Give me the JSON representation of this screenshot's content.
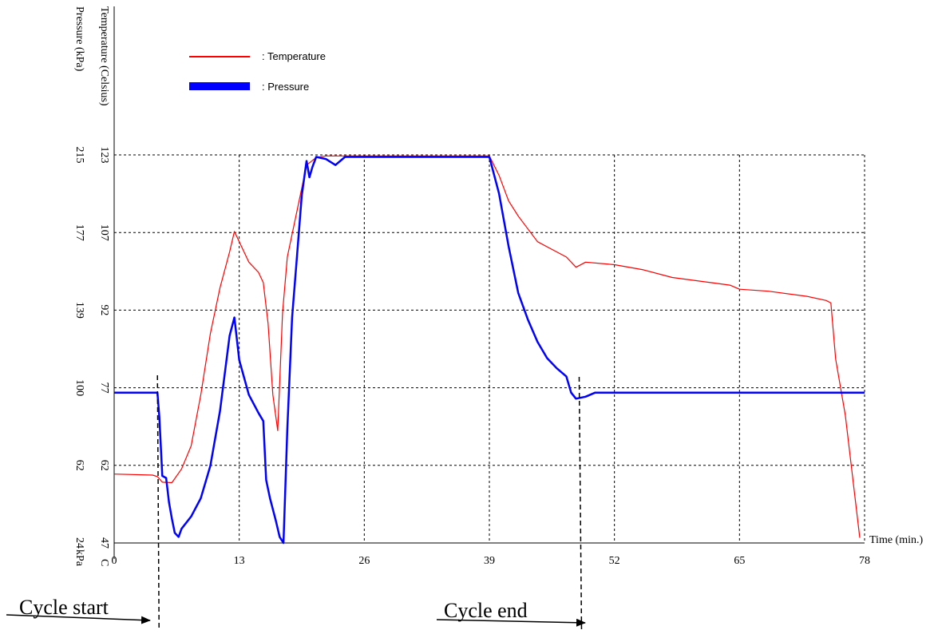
{
  "chart_data": {
    "type": "line",
    "xlabel": "Time (min.)",
    "x_ticks": [
      "0",
      "13",
      "26",
      "39",
      "52",
      "65",
      "78"
    ],
    "xlim": [
      0,
      78
    ],
    "y_left_temperature_label": "Temperature (Celsius)",
    "y_left_pressure_label": "Pressure (kPa)",
    "temperature_ticks": [
      "47",
      "62",
      "77",
      "92",
      "107",
      "123"
    ],
    "pressure_ticks": [
      "24",
      "62",
      "100",
      "139",
      "177",
      "215"
    ],
    "temperature_unit_label": "C",
    "pressure_unit_label": "kPa",
    "temperature_range": [
      47,
      123
    ],
    "pressure_range": [
      24,
      215
    ],
    "grid": true,
    "legend_position": "top-left",
    "series": [
      {
        "name": "Temperature",
        "legend_label": ":  Temperature",
        "color": "#ff0000",
        "axis": "temperature",
        "x": [
          0,
          4,
          4.5,
          5,
          6,
          7,
          8,
          9,
          10,
          11,
          12,
          12.5,
          13,
          14,
          15,
          15.5,
          16,
          16.5,
          17,
          17.5,
          18,
          19,
          20,
          21,
          22,
          24,
          28,
          32,
          36,
          39,
          40,
          41,
          42,
          44,
          45,
          47,
          48,
          49,
          52,
          55,
          58,
          62,
          64,
          65,
          68,
          72,
          74,
          74.5,
          75,
          76,
          77.5
        ],
        "values": [
          60.5,
          60.3,
          60.0,
          58.9,
          58.8,
          61.5,
          66,
          76,
          88,
          97,
          104,
          108,
          106,
          102,
          100,
          98,
          90,
          76,
          69,
          92,
          103,
          112,
          121,
          122.5,
          122.8,
          122.8,
          122.8,
          122.8,
          122.8,
          122.8,
          119,
          114,
          111,
          106,
          105,
          103,
          101,
          102,
          101.5,
          100.5,
          99,
          98,
          97.5,
          96.7,
          96.3,
          95.3,
          94.5,
          94,
          83,
          72,
          48
        ]
      },
      {
        "name": "Pressure",
        "legend_label": ":  Pressure",
        "color": "#0000ff",
        "axis": "pressure",
        "x": [
          0,
          4.5,
          4.7,
          5,
          5.4,
          5.7,
          6,
          6.3,
          6.7,
          7,
          8,
          9,
          10,
          11,
          12,
          12.5,
          13,
          14,
          15,
          15.5,
          15.8,
          16.2,
          16.8,
          17.2,
          17.6,
          18,
          18.5,
          19,
          19.5,
          20,
          20.3,
          20.6,
          21,
          22,
          23,
          24,
          28,
          32,
          36,
          39,
          40,
          41,
          42,
          43,
          44,
          45,
          46,
          47,
          47.5,
          48,
          49,
          50,
          55,
          65,
          78
        ],
        "values": [
          98,
          98,
          86,
          57,
          56,
          44,
          36,
          29,
          27,
          31,
          37,
          46,
          62,
          89,
          126,
          135,
          114,
          97,
          88,
          84,
          55,
          46,
          35,
          27,
          24,
          80,
          135,
          165,
          195,
          212,
          204,
          209,
          214,
          213,
          210,
          214,
          214,
          214,
          214,
          214,
          196,
          170,
          147,
          134,
          123,
          115,
          110,
          106,
          98,
          95,
          96,
          98,
          98,
          98,
          98
        ]
      }
    ],
    "annotations": {
      "cycle_start": {
        "label": "Cycle start",
        "x": 4.5
      },
      "cycle_end": {
        "label": "Cycle end",
        "x": 48.5
      }
    }
  }
}
